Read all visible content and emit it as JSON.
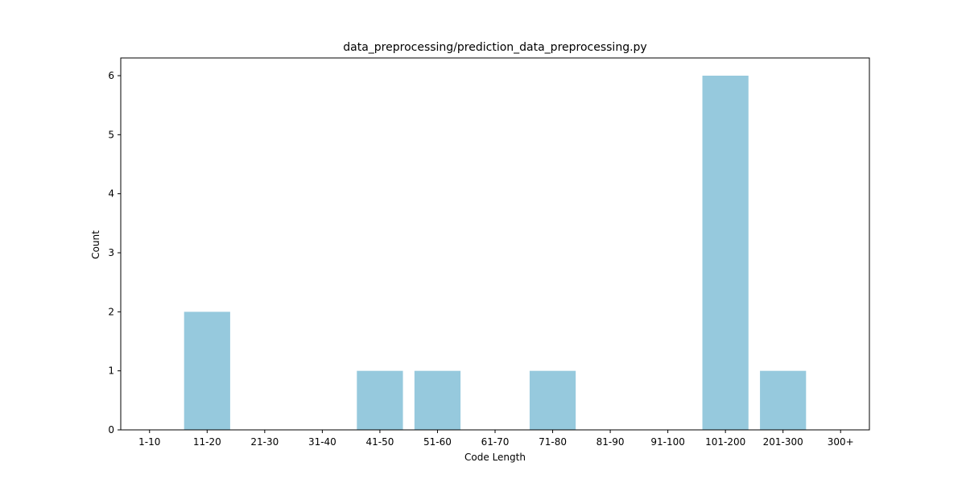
{
  "chart_data": {
    "type": "bar",
    "title": "data_preprocessing/prediction_data_preprocessing.py",
    "xlabel": "Code Length",
    "ylabel": "Count",
    "categories": [
      "1-10",
      "11-20",
      "21-30",
      "31-40",
      "41-50",
      "51-60",
      "61-70",
      "71-80",
      "81-90",
      "91-100",
      "101-200",
      "201-300",
      "300+"
    ],
    "values": [
      0,
      2,
      0,
      0,
      1,
      1,
      0,
      1,
      0,
      0,
      6,
      1,
      0
    ],
    "ylim": [
      0,
      6.3
    ],
    "yticks": [
      0,
      1,
      2,
      3,
      4,
      5,
      6
    ],
    "bar_color": "#96c9dd",
    "grid": false,
    "legend": "none"
  }
}
